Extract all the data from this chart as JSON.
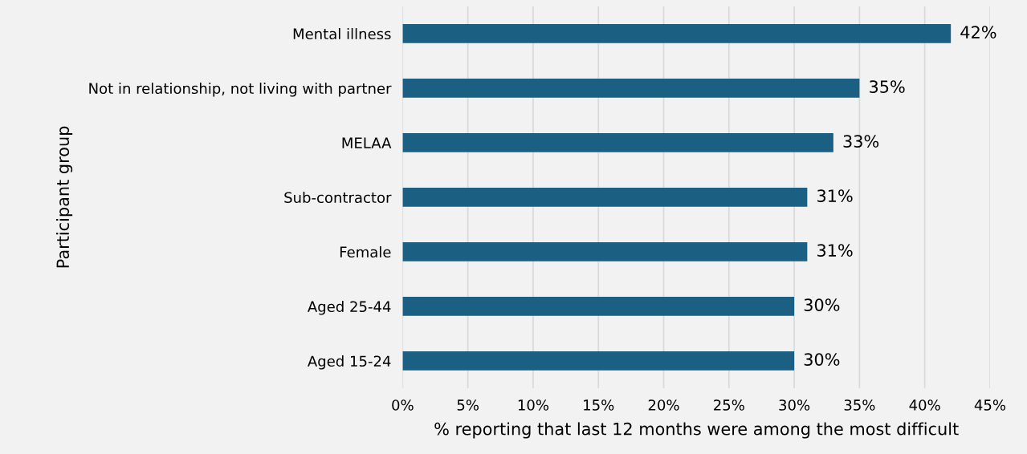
{
  "chart_data": {
    "type": "bar",
    "orientation": "horizontal",
    "categories": [
      "Mental illness",
      "Not in relationship, not living with partner",
      "MELAA",
      "Sub-contractor",
      "Female",
      "Aged 25-44",
      "Aged 15-24"
    ],
    "values": [
      42,
      35,
      33,
      31,
      31,
      30,
      30
    ],
    "color": "#1b6082",
    "data_labels": true,
    "value_labels": [
      "42%",
      "35%",
      "33%",
      "31%",
      "31%",
      "30%",
      "30%"
    ],
    "xlim": [
      0,
      45
    ],
    "xticks": [
      {
        "value": 0,
        "label": "0%"
      },
      {
        "value": 5,
        "label": "5%"
      },
      {
        "value": 10,
        "label": "10%"
      },
      {
        "value": 15,
        "label": "15%"
      },
      {
        "value": 20,
        "label": "20%"
      },
      {
        "value": 25,
        "label": "25%"
      },
      {
        "value": 30,
        "label": "30%"
      },
      {
        "value": 35,
        "label": "35%"
      },
      {
        "value": 40,
        "label": "40%"
      },
      {
        "value": 45,
        "label": "45%"
      }
    ],
    "xlabel": "% reporting that last 12 months were among the most difficult",
    "ylabel": "Participant group",
    "grid": "x",
    "legend": false
  }
}
